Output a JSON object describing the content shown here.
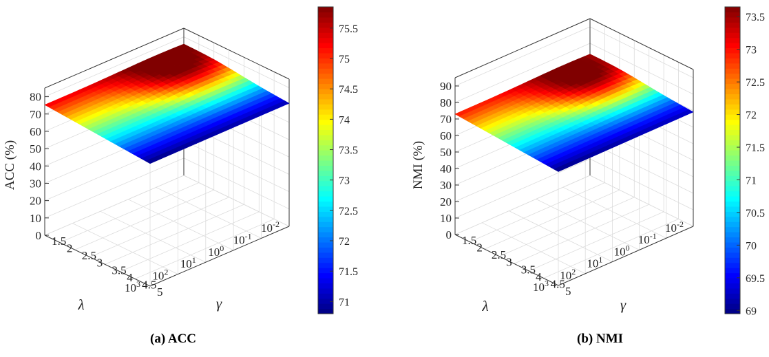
{
  "chart_data": [
    {
      "type": "surface3d",
      "caption": "(a) ACC",
      "zlabel": "ACC (%)",
      "xlabel": "λ",
      "ylabel": "γ",
      "x_ticks": [
        "10^-2",
        "10^-1",
        "10^0",
        "10^1",
        "10^2",
        "10^3"
      ],
      "y_ticks": [
        "1.5",
        "2",
        "2.5",
        "3",
        "3.5",
        "4",
        "4.5",
        "5"
      ],
      "z_ticks": [
        "0",
        "10",
        "20",
        "30",
        "40",
        "50",
        "60",
        "70",
        "80"
      ],
      "zlim": [
        0,
        85
      ],
      "colorbar_ticks": [
        "71",
        "71.5",
        "72",
        "72.5",
        "73",
        "73.5",
        "74",
        "74.5",
        "75",
        "75.5"
      ],
      "colorbar_range": [
        70.8,
        75.85
      ],
      "corner_values": {
        "lambda_min_gamma_max": 75.2,
        "lambda_min_gamma_min": 75.3,
        "lambda_max_gamma_min": 70.8,
        "lambda_max_gamma_max": 71.0
      },
      "peak": {
        "lambda": "10^-1",
        "gamma": 2.5,
        "value": 75.85
      },
      "colormap": "jet",
      "grid": true
    },
    {
      "type": "surface3d",
      "caption": "(b) NMI",
      "zlabel": "NMI (%)",
      "xlabel": "λ",
      "ylabel": "γ",
      "x_ticks": [
        "10^-2",
        "10^-1",
        "10^0",
        "10^1",
        "10^2",
        "10^3"
      ],
      "y_ticks": [
        "1.5",
        "2",
        "2.5",
        "3",
        "3.5",
        "4",
        "4.5",
        "5"
      ],
      "z_ticks": [
        "0",
        "10",
        "20",
        "30",
        "40",
        "50",
        "60",
        "70",
        "80",
        "90"
      ],
      "zlim": [
        0,
        95
      ],
      "colorbar_ticks": [
        "69",
        "69.5",
        "70",
        "70.5",
        "71",
        "71.5",
        "72",
        "72.5",
        "73",
        "73.5"
      ],
      "colorbar_range": [
        68.95,
        73.65
      ],
      "corner_values": {
        "lambda_min_gamma_max": 72.8,
        "lambda_min_gamma_min": 73.0,
        "lambda_max_gamma_min": 68.95,
        "lambda_max_gamma_max": 69.2
      },
      "peak": {
        "lambda": "10^-1",
        "gamma": 2.5,
        "value": 73.65
      },
      "colormap": "jet",
      "grid": true
    }
  ]
}
